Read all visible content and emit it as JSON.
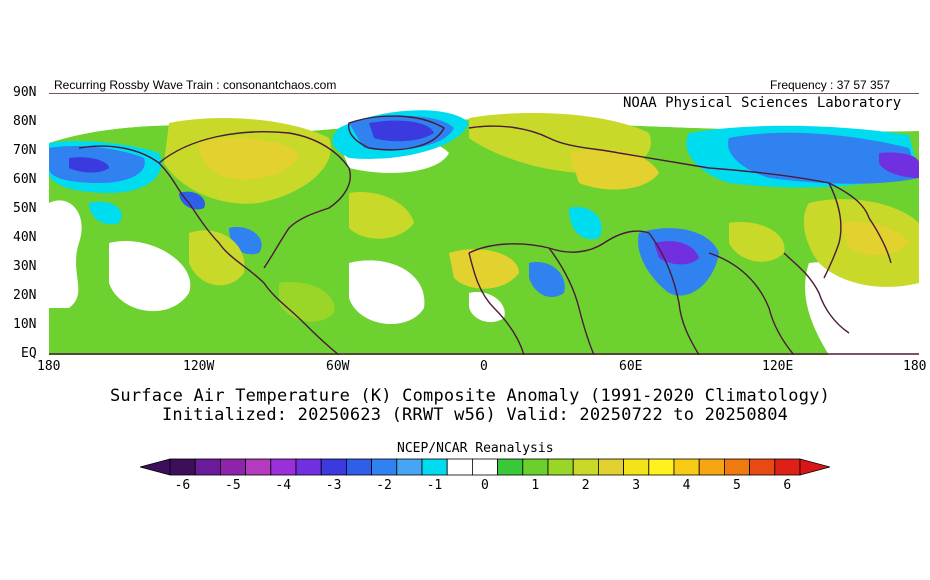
{
  "header": {
    "left": "Recurring Rossby Wave Train : consonantchaos.com",
    "right": "Frequency : 37 57 357"
  },
  "map": {
    "credit": "NOAA Physical Sciences Laboratory",
    "lat_labels": [
      "90N",
      "80N",
      "70N",
      "60N",
      "50N",
      "40N",
      "30N",
      "20N",
      "10N",
      "EQ"
    ],
    "lon_labels": [
      "180",
      "120W",
      "60W",
      "0",
      "60E",
      "120E",
      "180"
    ]
  },
  "title": {
    "line1": "Surface Air Temperature (K) Composite Anomaly (1991-2020 Climatology)",
    "line2": "Initialized: 20250623 (RRWT w56) Valid: 20250722 to 20250804"
  },
  "colorbar": {
    "title": "NCEP/NCAR Reanalysis",
    "tick_labels": [
      "-6",
      "-5",
      "-4",
      "-3",
      "-2",
      "-1",
      "0",
      "1",
      "2",
      "3",
      "4",
      "5",
      "6"
    ],
    "colors": [
      "#3d0f5a",
      "#6a1b9a",
      "#8e24aa",
      "#b43bbf",
      "#9b30d8",
      "#7030e0",
      "#3a3adf",
      "#2f5fe8",
      "#2f82ef",
      "#46a6f5",
      "#00dcef",
      "#ffffff",
      "#ffffff",
      "#39c83a",
      "#6bd02c",
      "#9ad628",
      "#c8d92a",
      "#e2d12e",
      "#f3e31a",
      "#fff21e",
      "#f8cc14",
      "#f5a612",
      "#ef7a12",
      "#e94a14",
      "#de2016"
    ],
    "left_arrow_color": "#3d0f5a",
    "right_arrow_color": "#d8161a"
  }
}
